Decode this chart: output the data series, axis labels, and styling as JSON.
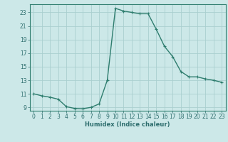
{
  "x": [
    0,
    1,
    2,
    3,
    4,
    5,
    6,
    7,
    8,
    9,
    10,
    11,
    12,
    13,
    14,
    15,
    16,
    17,
    18,
    19,
    20,
    21,
    22,
    23
  ],
  "y": [
    11.0,
    10.7,
    10.5,
    10.2,
    9.1,
    8.85,
    8.8,
    9.0,
    9.5,
    13.0,
    23.6,
    23.2,
    23.0,
    22.8,
    22.8,
    20.5,
    18.0,
    16.5,
    14.3,
    13.5,
    13.5,
    13.2,
    13.0,
    12.7
  ],
  "line_color": "#2e7d6e",
  "marker": "+",
  "marker_size": 3,
  "bg_color": "#cce8e8",
  "grid_color": "#aacfcf",
  "xlabel": "Humidex (Indice chaleur)",
  "xlim": [
    -0.5,
    23.5
  ],
  "ylim": [
    8.5,
    24.2
  ],
  "yticks": [
    9,
    11,
    13,
    15,
    17,
    19,
    21,
    23
  ],
  "xticks": [
    0,
    1,
    2,
    3,
    4,
    5,
    6,
    7,
    8,
    9,
    10,
    11,
    12,
    13,
    14,
    15,
    16,
    17,
    18,
    19,
    20,
    21,
    22,
    23
  ],
  "font_color": "#2e6e6e",
  "line_width": 1.0,
  "tick_fontsize": 5.5,
  "xlabel_fontsize": 6.0
}
